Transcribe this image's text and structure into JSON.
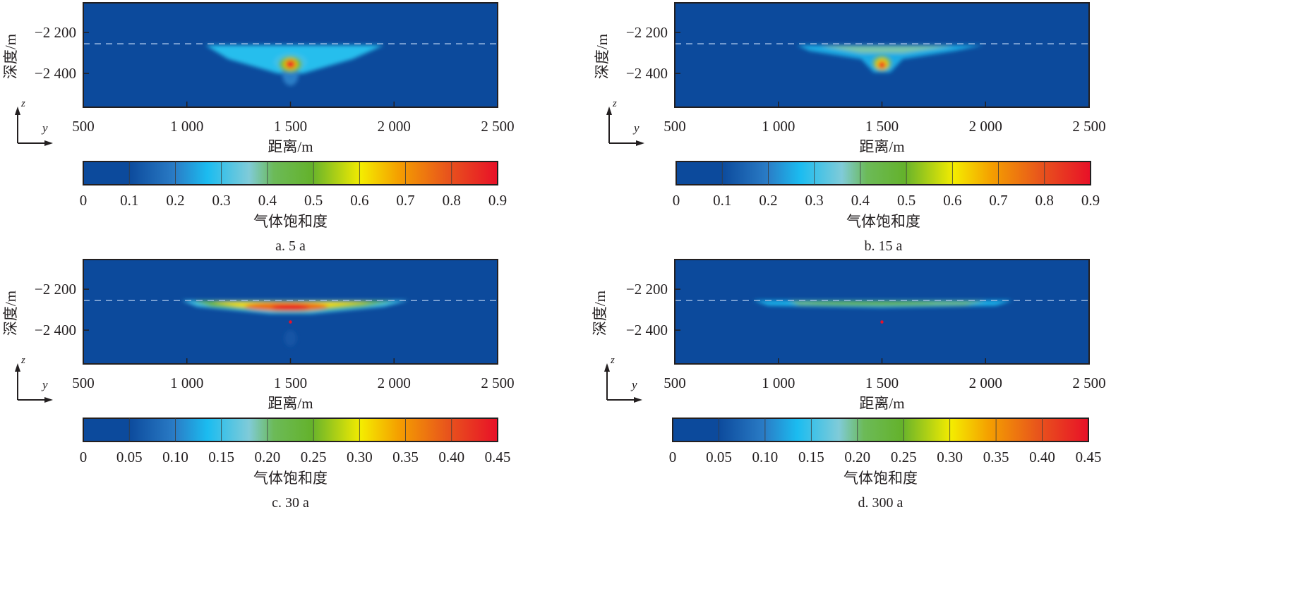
{
  "chart_data": [
    {
      "type": "heatmap",
      "caption": "a. 5 a",
      "xlabel": "距离/m",
      "ylabel": "深度/m",
      "xticks": [
        "500",
        "1 000",
        "1 500",
        "2 000",
        "2 500"
      ],
      "xtick_values": [
        500,
        1000,
        1500,
        2000,
        2500
      ],
      "yticks": [
        "−2 200",
        "−2 400"
      ],
      "ytick_values": [
        -2200,
        -2400
      ],
      "xlim": [
        500,
        2500
      ],
      "ylim": [
        -2565,
        -2055
      ],
      "caprock_depth": -2255,
      "colorbar": {
        "label": "气体饱和度",
        "range": [
          0,
          0.9
        ],
        "ticks": [
          "0",
          "0.1",
          "0.2",
          "0.3",
          "0.4",
          "0.5",
          "0.6",
          "0.7",
          "0.8",
          "0.9"
        ]
      },
      "plume": [
        {
          "shape": "poly",
          "pts": [
            [
              1090,
              -2262
            ],
            [
              1950,
              -2262
            ],
            [
              1800,
              -2330
            ],
            [
              1560,
              -2400
            ],
            [
              1440,
              -2400
            ],
            [
              1200,
              -2330
            ]
          ],
          "value": 0.28
        },
        {
          "shape": "ellipse",
          "cx": 1500,
          "cy": -2400,
          "rx": 40,
          "ry": 60,
          "value": 0.2
        },
        {
          "shape": "ellipse",
          "cx": 1500,
          "cy": -2345,
          "rx": 80,
          "ry": 45,
          "value": 0.3
        },
        {
          "shape": "ellipse",
          "cx": 1500,
          "cy": -2355,
          "rx": 55,
          "ry": 40,
          "value": 0.5
        },
        {
          "shape": "ellipse",
          "cx": 1500,
          "cy": -2355,
          "rx": 32,
          "ry": 26,
          "value": 0.62
        },
        {
          "shape": "ellipse",
          "cx": 1500,
          "cy": -2355,
          "rx": 24,
          "ry": 20,
          "value": 0.85
        }
      ]
    },
    {
      "type": "heatmap",
      "caption": "b. 15 a",
      "xlabel": "距离/m",
      "ylabel": "深度/m",
      "xticks": [
        "500",
        "1 000",
        "1 500",
        "2 000",
        "2 500"
      ],
      "xtick_values": [
        500,
        1000,
        1500,
        2000,
        2500
      ],
      "yticks": [
        "−2 200",
        "−2 400"
      ],
      "ytick_values": [
        -2200,
        -2400
      ],
      "xlim": [
        500,
        2500
      ],
      "ylim": [
        -2565,
        -2055
      ],
      "caprock_depth": -2255,
      "colorbar": {
        "label": "气体饱和度",
        "range": [
          0,
          0.9
        ],
        "ticks": [
          "0",
          "0.1",
          "0.2",
          "0.3",
          "0.4",
          "0.5",
          "0.6",
          "0.7",
          "0.8",
          "0.9"
        ]
      },
      "plume": [
        {
          "shape": "poly",
          "pts": [
            [
              1090,
              -2262
            ],
            [
              1990,
              -2262
            ],
            [
              1850,
              -2290
            ],
            [
              1600,
              -2330
            ],
            [
              1540,
              -2395
            ],
            [
              1460,
              -2395
            ],
            [
              1400,
              -2330
            ],
            [
              1150,
              -2290
            ]
          ],
          "value": 0.25
        },
        {
          "shape": "poly",
          "pts": [
            [
              1200,
              -2265
            ],
            [
              1850,
              -2265
            ],
            [
              1600,
              -2300
            ],
            [
              1400,
              -2300
            ]
          ],
          "value": 0.38
        },
        {
          "shape": "ellipse",
          "cx": 1500,
          "cy": -2350,
          "rx": 45,
          "ry": 38,
          "value": 0.45
        },
        {
          "shape": "ellipse",
          "cx": 1500,
          "cy": -2355,
          "rx": 28,
          "ry": 26,
          "value": 0.62
        },
        {
          "shape": "ellipse",
          "cx": 1500,
          "cy": -2358,
          "rx": 18,
          "ry": 18,
          "value": 0.85
        }
      ]
    },
    {
      "type": "heatmap",
      "caption": "c. 30 a",
      "xlabel": "距离/m",
      "ylabel": "深度/m",
      "xticks": [
        "500",
        "1 000",
        "1 500",
        "2 000",
        "2 500"
      ],
      "xtick_values": [
        500,
        1000,
        1500,
        2000,
        2500
      ],
      "yticks": [
        "−2 200",
        "−2 400"
      ],
      "ytick_values": [
        -2200,
        -2400
      ],
      "xlim": [
        500,
        2500
      ],
      "ylim": [
        -2565,
        -2055
      ],
      "caprock_depth": -2255,
      "injection_point": [
        1500,
        -2360
      ],
      "colorbar": {
        "label": "气体饱和度",
        "range": [
          0,
          0.45
        ],
        "ticks": [
          "0",
          "0.05",
          "0.10",
          "0.15",
          "0.20",
          "0.25",
          "0.30",
          "0.35",
          "0.40",
          "0.45"
        ]
      },
      "plume": [
        {
          "shape": "ellipse",
          "cx": 1500,
          "cy": -2440,
          "rx": 30,
          "ry": 40,
          "value": 0.06
        },
        {
          "shape": "poly",
          "pts": [
            [
              975,
              -2255
            ],
            [
              2070,
              -2255
            ],
            [
              1950,
              -2285
            ],
            [
              1600,
              -2320
            ],
            [
              1400,
              -2320
            ],
            [
              1050,
              -2285
            ]
          ],
          "value": 0.15
        },
        {
          "shape": "poly",
          "pts": [
            [
              1030,
              -2258
            ],
            [
              2000,
              -2258
            ],
            [
              1850,
              -2285
            ],
            [
              1560,
              -2310
            ],
            [
              1440,
              -2310
            ],
            [
              1120,
              -2285
            ]
          ],
          "value": 0.25
        },
        {
          "shape": "poly",
          "pts": [
            [
              1120,
              -2262
            ],
            [
              1900,
              -2262
            ],
            [
              1700,
              -2285
            ],
            [
              1540,
              -2300
            ],
            [
              1460,
              -2300
            ],
            [
              1250,
              -2285
            ]
          ],
          "value": 0.31
        },
        {
          "shape": "ellipse",
          "cx": 1480,
          "cy": -2285,
          "rx": 200,
          "ry": 20,
          "value": 0.38
        },
        {
          "shape": "ellipse",
          "cx": 1500,
          "cy": -2290,
          "rx": 90,
          "ry": 15,
          "value": 0.44
        }
      ]
    },
    {
      "type": "heatmap",
      "caption": "d. 300 a",
      "xlabel": "距离/m",
      "ylabel": "深度/m",
      "xticks": [
        "500",
        "1 000",
        "1 500",
        "2 000",
        "2 500"
      ],
      "xtick_values": [
        500,
        1000,
        1500,
        2000,
        2500
      ],
      "yticks": [
        "−2 200",
        "−2 400"
      ],
      "ytick_values": [
        -2200,
        -2400
      ],
      "xlim": [
        500,
        2500
      ],
      "ylim": [
        -2565,
        -2055
      ],
      "caprock_depth": -2255,
      "injection_point": [
        1500,
        -2360
      ],
      "colorbar": {
        "label": "气体饱和度",
        "range": [
          0,
          0.45
        ],
        "ticks": [
          "0",
          "0.05",
          "0.10",
          "0.15",
          "0.20",
          "0.25",
          "0.30",
          "0.35",
          "0.40",
          "0.45"
        ]
      },
      "plume": [
        {
          "shape": "poly",
          "pts": [
            [
              880,
              -2255
            ],
            [
              2130,
              -2255
            ],
            [
              2050,
              -2280
            ],
            [
              1500,
              -2290
            ],
            [
              950,
              -2280
            ]
          ],
          "value": 0.13
        },
        {
          "shape": "poly",
          "pts": [
            [
              1050,
              -2258
            ],
            [
              2000,
              -2258
            ],
            [
              1900,
              -2278
            ],
            [
              1500,
              -2283
            ],
            [
              1100,
              -2278
            ]
          ],
          "value": 0.2
        },
        {
          "shape": "ellipse",
          "cx": 1450,
          "cy": -2268,
          "rx": 300,
          "ry": 9,
          "value": 0.24
        }
      ]
    }
  ],
  "axis_indicator": {
    "vertical": "z",
    "horizontal": "y"
  },
  "colors": {
    "background": "#0c4a9c",
    "caprock_line": "#a8c4e8",
    "injection_point": "#e8102a"
  }
}
